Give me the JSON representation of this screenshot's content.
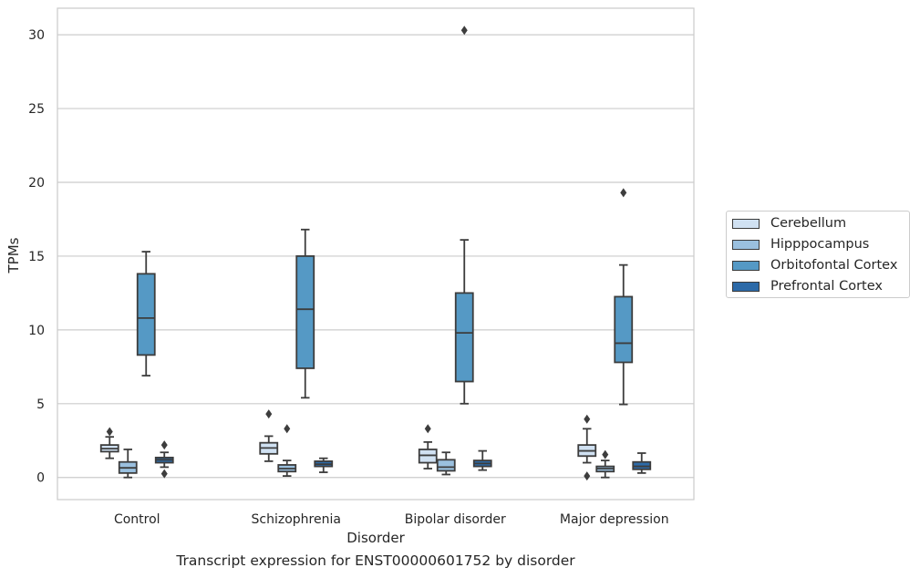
{
  "chart_data": {
    "type": "box",
    "xlabel": "Disorder",
    "ylabel": "TPMs",
    "ylim": [
      -1.5,
      31.8
    ],
    "yticks": [
      0,
      5,
      10,
      15,
      20,
      25,
      30
    ],
    "grid": true,
    "legend_position": "right",
    "categories": [
      "Control",
      "Schizophrenia",
      "Bipolar disorder",
      "Major depression"
    ],
    "series": [
      {
        "name": "Cerebellum",
        "color": "#d0e1f2",
        "boxes": [
          {
            "whislo": 1.3,
            "q1": 1.75,
            "med": 1.95,
            "q3": 2.2,
            "whishi": 2.75,
            "fliers": [
              3.1
            ]
          },
          {
            "whislo": 1.1,
            "q1": 1.6,
            "med": 2.0,
            "q3": 2.35,
            "whishi": 2.8,
            "fliers": [
              4.3
            ]
          },
          {
            "whislo": 0.6,
            "q1": 1.0,
            "med": 1.5,
            "q3": 1.9,
            "whishi": 2.4,
            "fliers": [
              3.3
            ]
          },
          {
            "whislo": 1.0,
            "q1": 1.45,
            "med": 1.8,
            "q3": 2.2,
            "whishi": 3.3,
            "fliers": [
              3.95,
              0.1
            ]
          }
        ]
      },
      {
        "name": "Hipppocampus",
        "color": "#9ac0df",
        "boxes": [
          {
            "whislo": 0.0,
            "q1": 0.3,
            "med": 0.65,
            "q3": 1.05,
            "whishi": 1.9,
            "fliers": []
          },
          {
            "whislo": 0.1,
            "q1": 0.4,
            "med": 0.6,
            "q3": 0.85,
            "whishi": 1.15,
            "fliers": [
              3.3
            ]
          },
          {
            "whislo": 0.2,
            "q1": 0.45,
            "med": 0.7,
            "q3": 1.2,
            "whishi": 1.7,
            "fliers": []
          },
          {
            "whislo": 0.0,
            "q1": 0.4,
            "med": 0.6,
            "q3": 0.75,
            "whishi": 1.15,
            "fliers": [
              1.55
            ]
          }
        ]
      },
      {
        "name": "Orbitofontal Cortex",
        "color": "#5599c5",
        "boxes": [
          {
            "whislo": 6.9,
            "q1": 8.3,
            "med": 10.8,
            "q3": 13.8,
            "whishi": 15.3,
            "fliers": []
          },
          {
            "whislo": 5.4,
            "q1": 7.4,
            "med": 11.4,
            "q3": 15.0,
            "whishi": 16.8,
            "fliers": []
          },
          {
            "whislo": 5.0,
            "q1": 6.5,
            "med": 9.8,
            "q3": 12.5,
            "whishi": 16.1,
            "fliers": [
              30.3
            ]
          },
          {
            "whislo": 4.95,
            "q1": 7.8,
            "med": 9.1,
            "q3": 12.25,
            "whishi": 14.4,
            "fliers": [
              19.3
            ]
          }
        ]
      },
      {
        "name": "Prefrontal Cortex",
        "color": "#2c6aa8",
        "boxes": [
          {
            "whislo": 0.7,
            "q1": 1.0,
            "med": 1.2,
            "q3": 1.35,
            "whishi": 1.7,
            "fliers": [
              2.2,
              0.25
            ]
          },
          {
            "whislo": 0.35,
            "q1": 0.75,
            "med": 0.9,
            "q3": 1.1,
            "whishi": 1.3,
            "fliers": []
          },
          {
            "whislo": 0.5,
            "q1": 0.75,
            "med": 0.95,
            "q3": 1.15,
            "whishi": 1.8,
            "fliers": []
          },
          {
            "whislo": 0.3,
            "q1": 0.55,
            "med": 0.75,
            "q3": 1.05,
            "whishi": 1.65,
            "fliers": []
          }
        ]
      }
    ]
  },
  "caption": "Transcript expression for ENST00000601752 by disorder"
}
